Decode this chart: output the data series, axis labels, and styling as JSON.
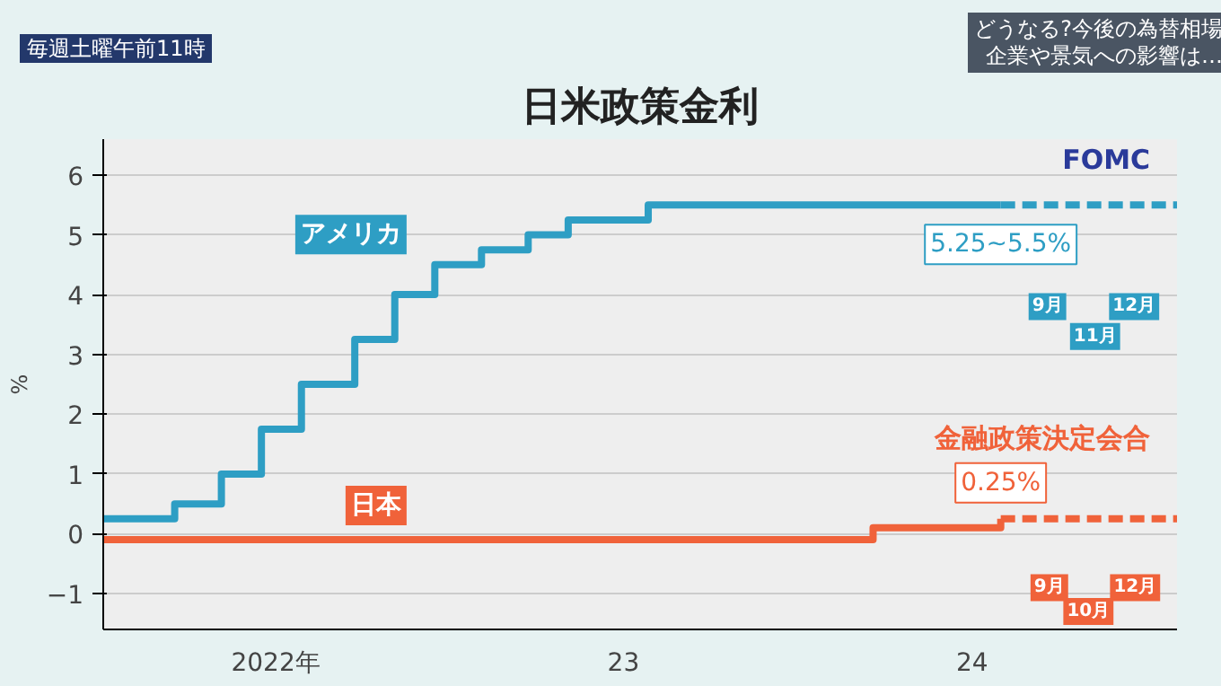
{
  "chart_data": {
    "type": "step",
    "title": "日米政策金利",
    "ylabel": "%",
    "annotations": [
      "毎週土曜午前11時",
      "どうなる?今後の為替相場",
      "企業や景気への影響は…",
      "FOMC",
      "金融政策決定会合",
      {
        "text": "5.25~5.5%",
        "x": "2024-07-31",
        "y": 5.5
      },
      {
        "text": "0.25%",
        "x": "2024-07-31",
        "y": 0.25
      },
      {
        "text": "9月",
        "x": "2024-09-18",
        "y": 3.8
      },
      {
        "text": "11月",
        "x": "2024-11-07",
        "y": 3.3
      },
      {
        "text": "12月",
        "x": "2024-12-18",
        "y": 3.8
      },
      {
        "text": "9月",
        "x": "2024-09-20",
        "y": -0.9
      },
      {
        "text": "10月",
        "x": "2024-10-31",
        "y": -1.3
      },
      {
        "text": "12月",
        "x": "2024-12-19",
        "y": -0.9
      }
    ],
    "series": [
      {
        "name": "アメリカ",
        "color": "#2e9ec4",
        "line_style": "solid",
        "x": [
          "2022-01-01",
          "2022-03-17",
          "2022-05-05",
          "2022-06-16",
          "2022-07-28",
          "2022-09-22",
          "2022-11-03",
          "2022-12-15",
          "2023-02-02",
          "2023-03-23",
          "2023-05-04",
          "2023-07-27",
          "2024-07-31"
        ],
        "values": [
          0.25,
          0.5,
          1.0,
          1.75,
          2.5,
          3.25,
          4.0,
          4.5,
          4.75,
          5.0,
          5.25,
          5.5,
          5.5
        ]
      },
      {
        "color": "#2e9ec4",
        "line_style": "dashed",
        "x": [
          "2024-07-31",
          "2025-02-01"
        ],
        "values": [
          5.5,
          5.5
        ]
      },
      {
        "name": "日本",
        "color": "#f0623a",
        "line_style": "solid",
        "x": [
          "2022-01-01",
          "2024-03-19",
          "2024-07-31"
        ],
        "values": [
          -0.1,
          0.1,
          0.25
        ]
      },
      {
        "color": "#f0623a",
        "line_style": "dashed",
        "x": [
          "2024-07-31",
          "2025-02-01"
        ],
        "values": [
          0.25,
          0.25
        ]
      }
    ],
    "xlim": [
      "2022-01-01",
      "2025-02-01"
    ],
    "xticks": [
      {
        "value": "2022-07-01",
        "label": "2022年"
      },
      {
        "value": "2023-07-01",
        "label": "23"
      },
      {
        "value": "2024-07-01",
        "label": "24"
      }
    ],
    "ylim": [
      -1.6,
      6.6
    ],
    "yticks": [
      -1,
      0,
      1,
      2,
      3,
      4,
      5,
      6
    ],
    "grid": "y",
    "legend": false
  }
}
